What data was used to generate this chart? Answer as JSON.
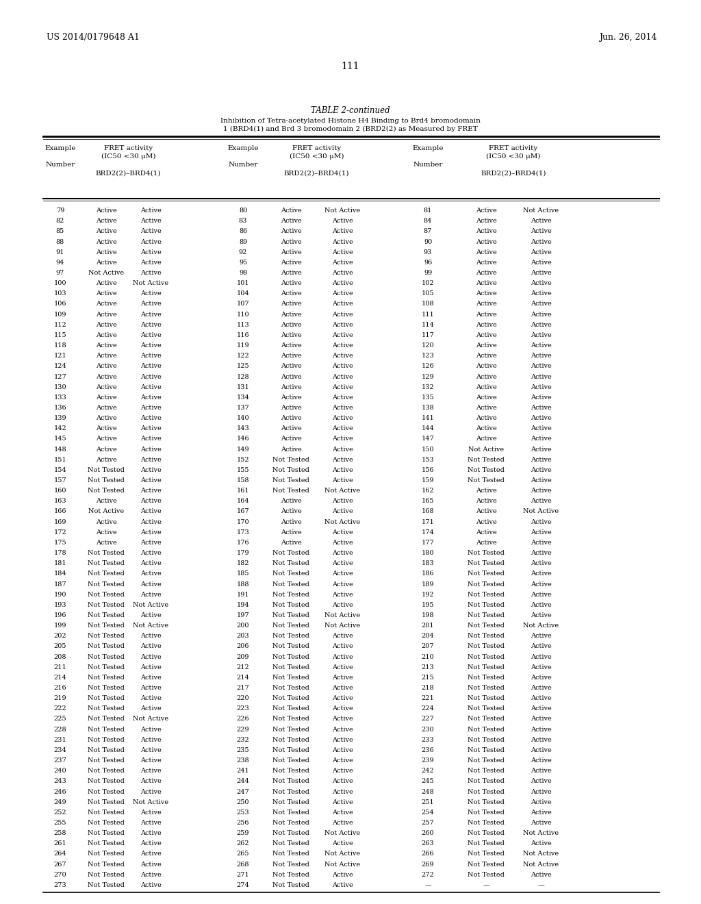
{
  "page_header_left": "US 2014/0179648 A1",
  "page_header_right": "Jun. 26, 2014",
  "page_number": "111",
  "table_title": "TABLE 2-continued",
  "table_subtitle_line1": "Inhibition of Tetra-acetylated Histone H4 Binding to Brd4 bromodomain",
  "table_subtitle_line2": "1 (BRD4(1) and Brd 3 bromodomain 2 (BRD2(2) as Measured by FRET",
  "rows": [
    [
      "79",
      "Active",
      "Active",
      "80",
      "Active",
      "Not Active",
      "81",
      "Active",
      "Not Active"
    ],
    [
      "82",
      "Active",
      "Active",
      "83",
      "Active",
      "Active",
      "84",
      "Active",
      "Active"
    ],
    [
      "85",
      "Active",
      "Active",
      "86",
      "Active",
      "Active",
      "87",
      "Active",
      "Active"
    ],
    [
      "88",
      "Active",
      "Active",
      "89",
      "Active",
      "Active",
      "90",
      "Active",
      "Active"
    ],
    [
      "91",
      "Active",
      "Active",
      "92",
      "Active",
      "Active",
      "93",
      "Active",
      "Active"
    ],
    [
      "94",
      "Active",
      "Active",
      "95",
      "Active",
      "Active",
      "96",
      "Active",
      "Active"
    ],
    [
      "97",
      "Not Active",
      "Active",
      "98",
      "Active",
      "Active",
      "99",
      "Active",
      "Active"
    ],
    [
      "100",
      "Active",
      "Not Active",
      "101",
      "Active",
      "Active",
      "102",
      "Active",
      "Active"
    ],
    [
      "103",
      "Active",
      "Active",
      "104",
      "Active",
      "Active",
      "105",
      "Active",
      "Active"
    ],
    [
      "106",
      "Active",
      "Active",
      "107",
      "Active",
      "Active",
      "108",
      "Active",
      "Active"
    ],
    [
      "109",
      "Active",
      "Active",
      "110",
      "Active",
      "Active",
      "111",
      "Active",
      "Active"
    ],
    [
      "112",
      "Active",
      "Active",
      "113",
      "Active",
      "Active",
      "114",
      "Active",
      "Active"
    ],
    [
      "115",
      "Active",
      "Active",
      "116",
      "Active",
      "Active",
      "117",
      "Active",
      "Active"
    ],
    [
      "118",
      "Active",
      "Active",
      "119",
      "Active",
      "Active",
      "120",
      "Active",
      "Active"
    ],
    [
      "121",
      "Active",
      "Active",
      "122",
      "Active",
      "Active",
      "123",
      "Active",
      "Active"
    ],
    [
      "124",
      "Active",
      "Active",
      "125",
      "Active",
      "Active",
      "126",
      "Active",
      "Active"
    ],
    [
      "127",
      "Active",
      "Active",
      "128",
      "Active",
      "Active",
      "129",
      "Active",
      "Active"
    ],
    [
      "130",
      "Active",
      "Active",
      "131",
      "Active",
      "Active",
      "132",
      "Active",
      "Active"
    ],
    [
      "133",
      "Active",
      "Active",
      "134",
      "Active",
      "Active",
      "135",
      "Active",
      "Active"
    ],
    [
      "136",
      "Active",
      "Active",
      "137",
      "Active",
      "Active",
      "138",
      "Active",
      "Active"
    ],
    [
      "139",
      "Active",
      "Active",
      "140",
      "Active",
      "Active",
      "141",
      "Active",
      "Active"
    ],
    [
      "142",
      "Active",
      "Active",
      "143",
      "Active",
      "Active",
      "144",
      "Active",
      "Active"
    ],
    [
      "145",
      "Active",
      "Active",
      "146",
      "Active",
      "Active",
      "147",
      "Active",
      "Active"
    ],
    [
      "148",
      "Active",
      "Active",
      "149",
      "Active",
      "Active",
      "150",
      "Not Active",
      "Active"
    ],
    [
      "151",
      "Active",
      "Active",
      "152",
      "Not Tested",
      "Active",
      "153",
      "Not Tested",
      "Active"
    ],
    [
      "154",
      "Not Tested",
      "Active",
      "155",
      "Not Tested",
      "Active",
      "156",
      "Not Tested",
      "Active"
    ],
    [
      "157",
      "Not Tested",
      "Active",
      "158",
      "Not Tested",
      "Active",
      "159",
      "Not Tested",
      "Active"
    ],
    [
      "160",
      "Not Tested",
      "Active",
      "161",
      "Not Tested",
      "Not Active",
      "162",
      "Active",
      "Active"
    ],
    [
      "163",
      "Active",
      "Active",
      "164",
      "Active",
      "Active",
      "165",
      "Active",
      "Active"
    ],
    [
      "166",
      "Not Active",
      "Active",
      "167",
      "Active",
      "Active",
      "168",
      "Active",
      "Not Active"
    ],
    [
      "169",
      "Active",
      "Active",
      "170",
      "Active",
      "Not Active",
      "171",
      "Active",
      "Active"
    ],
    [
      "172",
      "Active",
      "Active",
      "173",
      "Active",
      "Active",
      "174",
      "Active",
      "Active"
    ],
    [
      "175",
      "Active",
      "Active",
      "176",
      "Active",
      "Active",
      "177",
      "Active",
      "Active"
    ],
    [
      "178",
      "Not Tested",
      "Active",
      "179",
      "Not Tested",
      "Active",
      "180",
      "Not Tested",
      "Active"
    ],
    [
      "181",
      "Not Tested",
      "Active",
      "182",
      "Not Tested",
      "Active",
      "183",
      "Not Tested",
      "Active"
    ],
    [
      "184",
      "Not Tested",
      "Active",
      "185",
      "Not Tested",
      "Active",
      "186",
      "Not Tested",
      "Active"
    ],
    [
      "187",
      "Not Tested",
      "Active",
      "188",
      "Not Tested",
      "Active",
      "189",
      "Not Tested",
      "Active"
    ],
    [
      "190",
      "Not Tested",
      "Active",
      "191",
      "Not Tested",
      "Active",
      "192",
      "Not Tested",
      "Active"
    ],
    [
      "193",
      "Not Tested",
      "Not Active",
      "194",
      "Not Tested",
      "Active",
      "195",
      "Not Tested",
      "Active"
    ],
    [
      "196",
      "Not Tested",
      "Active",
      "197",
      "Not Tested",
      "Not Active",
      "198",
      "Not Tested",
      "Active"
    ],
    [
      "199",
      "Not Tested",
      "Not Active",
      "200",
      "Not Tested",
      "Not Active",
      "201",
      "Not Tested",
      "Not Active"
    ],
    [
      "202",
      "Not Tested",
      "Active",
      "203",
      "Not Tested",
      "Active",
      "204",
      "Not Tested",
      "Active"
    ],
    [
      "205",
      "Not Tested",
      "Active",
      "206",
      "Not Tested",
      "Active",
      "207",
      "Not Tested",
      "Active"
    ],
    [
      "208",
      "Not Tested",
      "Active",
      "209",
      "Not Tested",
      "Active",
      "210",
      "Not Tested",
      "Active"
    ],
    [
      "211",
      "Not Tested",
      "Active",
      "212",
      "Not Tested",
      "Active",
      "213",
      "Not Tested",
      "Active"
    ],
    [
      "214",
      "Not Tested",
      "Active",
      "214",
      "Not Tested",
      "Active",
      "215",
      "Not Tested",
      "Active"
    ],
    [
      "216",
      "Not Tested",
      "Active",
      "217",
      "Not Tested",
      "Active",
      "218",
      "Not Tested",
      "Active"
    ],
    [
      "219",
      "Not Tested",
      "Active",
      "220",
      "Not Tested",
      "Active",
      "221",
      "Not Tested",
      "Active"
    ],
    [
      "222",
      "Not Tested",
      "Active",
      "223",
      "Not Tested",
      "Active",
      "224",
      "Not Tested",
      "Active"
    ],
    [
      "225",
      "Not Tested",
      "Not Active",
      "226",
      "Not Tested",
      "Active",
      "227",
      "Not Tested",
      "Active"
    ],
    [
      "228",
      "Not Tested",
      "Active",
      "229",
      "Not Tested",
      "Active",
      "230",
      "Not Tested",
      "Active"
    ],
    [
      "231",
      "Not Tested",
      "Active",
      "232",
      "Not Tested",
      "Active",
      "233",
      "Not Tested",
      "Active"
    ],
    [
      "234",
      "Not Tested",
      "Active",
      "235",
      "Not Tested",
      "Active",
      "236",
      "Not Tested",
      "Active"
    ],
    [
      "237",
      "Not Tested",
      "Active",
      "238",
      "Not Tested",
      "Active",
      "239",
      "Not Tested",
      "Active"
    ],
    [
      "240",
      "Not Tested",
      "Active",
      "241",
      "Not Tested",
      "Active",
      "242",
      "Not Tested",
      "Active"
    ],
    [
      "243",
      "Not Tested",
      "Active",
      "244",
      "Not Tested",
      "Active",
      "245",
      "Not Tested",
      "Active"
    ],
    [
      "246",
      "Not Tested",
      "Active",
      "247",
      "Not Tested",
      "Active",
      "248",
      "Not Tested",
      "Active"
    ],
    [
      "249",
      "Not Tested",
      "Not Active",
      "250",
      "Not Tested",
      "Active",
      "251",
      "Not Tested",
      "Active"
    ],
    [
      "252",
      "Not Tested",
      "Active",
      "253",
      "Not Tested",
      "Active",
      "254",
      "Not Tested",
      "Active"
    ],
    [
      "255",
      "Not Tested",
      "Active",
      "256",
      "Not Tested",
      "Active",
      "257",
      "Not Tested",
      "Active"
    ],
    [
      "258",
      "Not Tested",
      "Active",
      "259",
      "Not Tested",
      "Not Active",
      "260",
      "Not Tested",
      "Not Active"
    ],
    [
      "261",
      "Not Tested",
      "Active",
      "262",
      "Not Tested",
      "Active",
      "263",
      "Not Tested",
      "Active"
    ],
    [
      "264",
      "Not Tested",
      "Active",
      "265",
      "Not Tested",
      "Not Active",
      "266",
      "Not Tested",
      "Not Active"
    ],
    [
      "267",
      "Not Tested",
      "Active",
      "268",
      "Not Tested",
      "Not Active",
      "269",
      "Not Tested",
      "Not Active"
    ],
    [
      "270",
      "Not Tested",
      "Active",
      "271",
      "Not Tested",
      "Active",
      "272",
      "Not Tested",
      "Active"
    ],
    [
      "273",
      "Not Tested",
      "Active",
      "274",
      "Not Tested",
      "Active",
      "—",
      "—",
      "—"
    ]
  ],
  "background_color": "#ffffff",
  "text_color": "#000000",
  "font_size": 7.0,
  "header_font_size": 7.5,
  "title_font_size": 8.5
}
